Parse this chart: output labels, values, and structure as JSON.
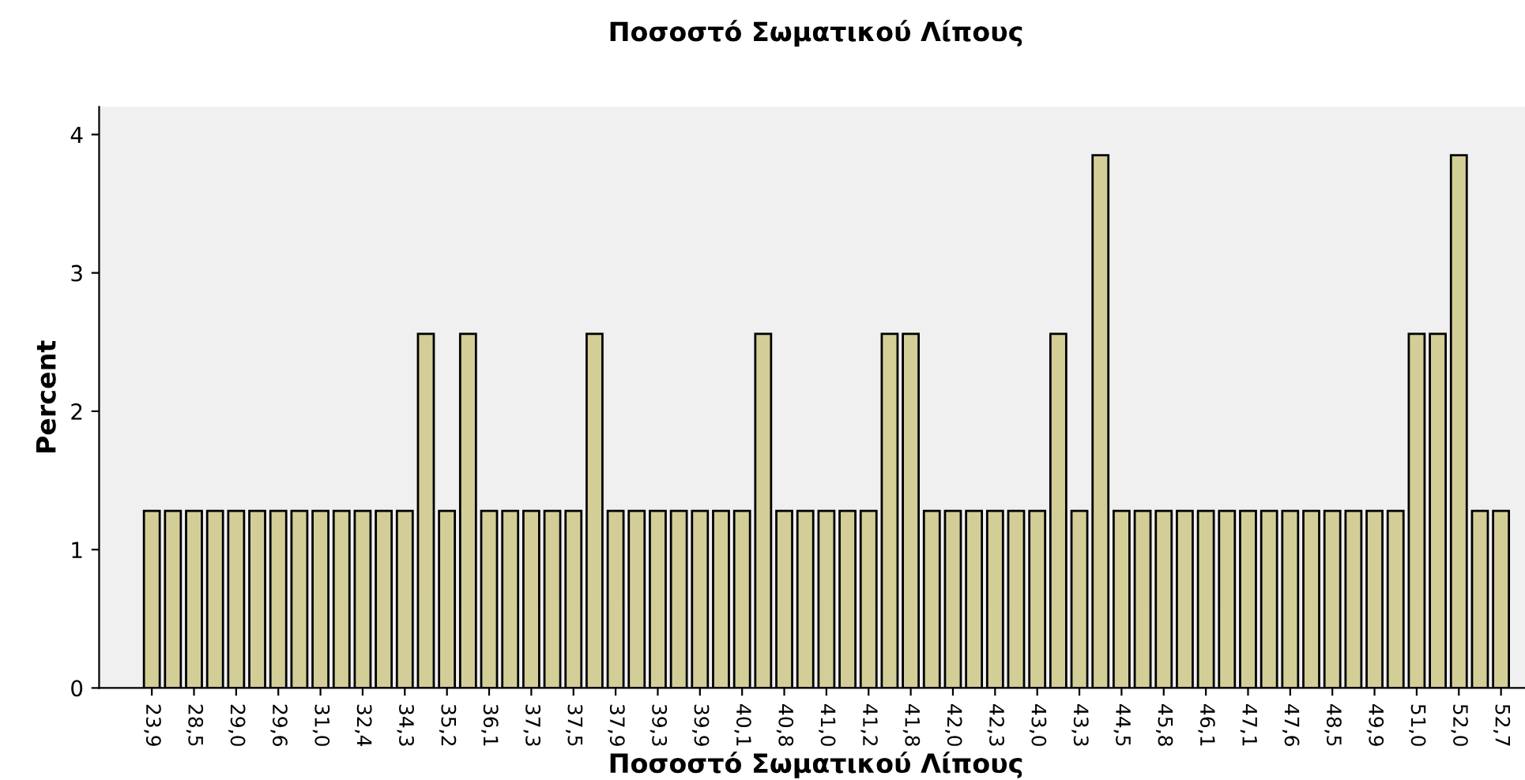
{
  "chart_data": {
    "type": "bar",
    "title": "Ποσοστό Σωματικού Λίπους",
    "xlabel": "Ποσοστό Σωματικού Λίπους",
    "ylabel": "Percent",
    "categories": [
      "23,9",
      null,
      "28,5",
      null,
      "29,0",
      null,
      "29,6",
      null,
      "31,0",
      null,
      "32,4",
      null,
      "34,3",
      null,
      "35,2",
      null,
      "36,1",
      null,
      "37,3",
      null,
      "37,5",
      null,
      "37,9",
      null,
      "39,3",
      null,
      "39,9",
      null,
      "40,1",
      null,
      "40,8",
      null,
      "41,0",
      null,
      "41,2",
      null,
      "41,8",
      null,
      "42,0",
      null,
      "42,3",
      null,
      "43,0",
      null,
      "43,3",
      null,
      "44,5",
      null,
      "45,8",
      null,
      "46,1",
      null,
      "47,1",
      null,
      "47,6",
      null,
      "48,5",
      null,
      "49,9",
      null,
      "51,0",
      null,
      "52,0",
      null,
      "52,7"
    ],
    "values": [
      1.28,
      1.28,
      1.28,
      1.28,
      1.28,
      1.28,
      1.28,
      1.28,
      1.28,
      1.28,
      1.28,
      1.28,
      1.28,
      2.56,
      1.28,
      2.56,
      1.28,
      1.28,
      1.28,
      1.28,
      1.28,
      2.56,
      1.28,
      1.28,
      1.28,
      1.28,
      1.28,
      1.28,
      1.28,
      2.56,
      1.28,
      1.28,
      1.28,
      1.28,
      1.28,
      2.56,
      2.56,
      1.28,
      1.28,
      1.28,
      1.28,
      1.28,
      1.28,
      2.56,
      1.28,
      3.85,
      1.28,
      1.28,
      1.28,
      1.28,
      1.28,
      1.28,
      1.28,
      1.28,
      1.28,
      1.28,
      1.28,
      1.28,
      1.28,
      1.28,
      2.56,
      2.56,
      3.85,
      1.28,
      1.28
    ],
    "color": "#d3ce97",
    "ylim": [
      0,
      4.2
    ],
    "yticks": [
      0,
      1,
      2,
      3,
      4
    ],
    "grid": false
  }
}
